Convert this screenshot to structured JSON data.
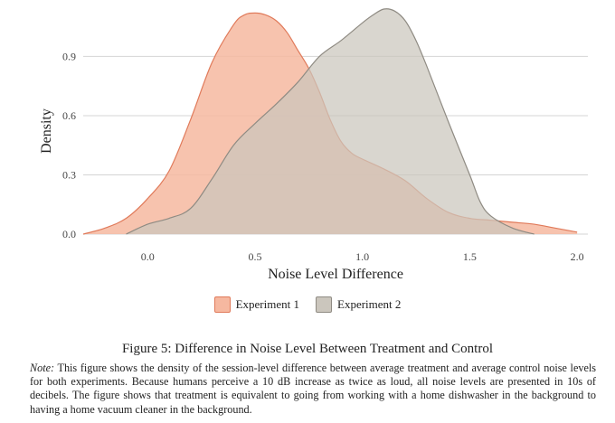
{
  "chart_data": {
    "type": "area",
    "xlabel": "Noise Level Difference",
    "ylabel": "Density",
    "xlim": [
      -0.3,
      2.05
    ],
    "ylim": [
      0,
      1.14
    ],
    "x_ticks": [
      "0.0",
      "0.5",
      "1.0",
      "1.5",
      "2.0"
    ],
    "y_ticks": [
      "0.0",
      "0.3",
      "0.6",
      "0.9"
    ],
    "grid": "horizontal",
    "legend_position": "bottom",
    "series": [
      {
        "name": "Experiment 1",
        "fill": "#f6b8a0",
        "stroke": "#e07a5a",
        "x": [
          -0.3,
          -0.2,
          -0.1,
          0.0,
          0.1,
          0.2,
          0.3,
          0.4,
          0.45,
          0.5,
          0.55,
          0.6,
          0.65,
          0.7,
          0.75,
          0.8,
          0.85,
          0.9,
          0.95,
          1.0,
          1.1,
          1.2,
          1.3,
          1.4,
          1.5,
          1.6,
          1.7,
          1.8,
          1.9,
          2.0
        ],
        "values": [
          0.0,
          0.03,
          0.08,
          0.18,
          0.32,
          0.58,
          0.87,
          1.06,
          1.11,
          1.12,
          1.11,
          1.08,
          1.02,
          0.93,
          0.84,
          0.72,
          0.58,
          0.47,
          0.41,
          0.38,
          0.33,
          0.27,
          0.18,
          0.11,
          0.08,
          0.07,
          0.06,
          0.05,
          0.03,
          0.01
        ]
      },
      {
        "name": "Experiment 2",
        "fill": "#cbc6bd",
        "stroke": "#8f8b83",
        "x": [
          -0.1,
          0.0,
          0.1,
          0.2,
          0.3,
          0.4,
          0.5,
          0.6,
          0.7,
          0.8,
          0.9,
          1.0,
          1.05,
          1.1,
          1.15,
          1.2,
          1.25,
          1.3,
          1.4,
          1.5,
          1.55,
          1.6,
          1.7,
          1.8
        ],
        "values": [
          0.0,
          0.05,
          0.08,
          0.13,
          0.28,
          0.45,
          0.56,
          0.66,
          0.77,
          0.9,
          0.98,
          1.07,
          1.11,
          1.14,
          1.13,
          1.08,
          0.98,
          0.85,
          0.57,
          0.3,
          0.16,
          0.09,
          0.03,
          0.0
        ]
      }
    ]
  },
  "legend": {
    "items": [
      "Experiment 1",
      "Experiment 2"
    ]
  },
  "caption": {
    "title": "Figure 5: Difference in Noise Level Between Treatment and Control",
    "note_lead": "Note:",
    "note_body": " This figure shows the density of the session-level difference between average treatment and average control noise levels for both experiments. Because humans perceive a 10 dB increase as twice as loud, all noise levels are presented in 10s of decibels. The figure shows that treatment is equivalent to going from working with a home dishwasher in the background to having a home vacuum cleaner in the background."
  }
}
